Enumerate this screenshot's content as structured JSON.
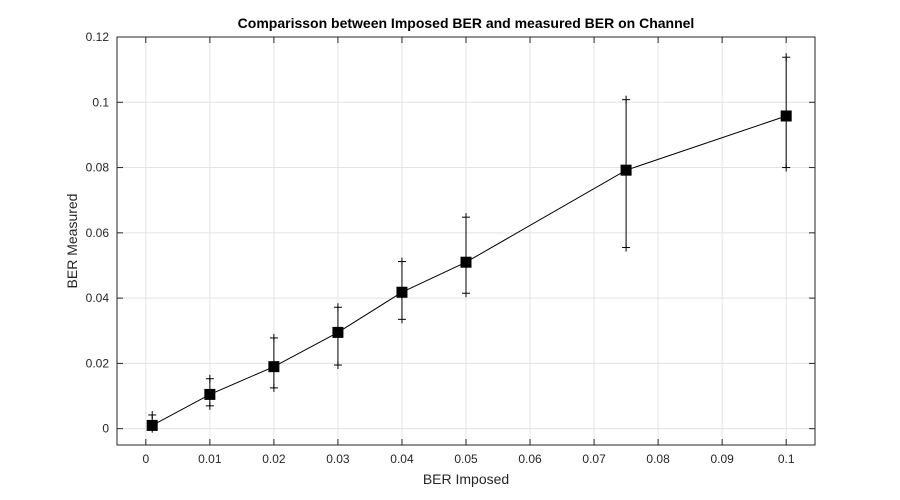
{
  "chart_data": {
    "type": "scatter",
    "title": "Comparisson between Imposed BER and measured BER on Channel",
    "xlabel": "BER Imposed",
    "ylabel": "BER Measured",
    "xlim": [
      -0.0045,
      0.1045
    ],
    "ylim": [
      -0.005,
      0.12
    ],
    "xticks": [
      0,
      0.01,
      0.02,
      0.03,
      0.04,
      0.05,
      0.06,
      0.07,
      0.08,
      0.09,
      0.1
    ],
    "xtick_labels": [
      "0",
      "0.01",
      "0.02",
      "0.03",
      "0.04",
      "0.05",
      "0.06",
      "0.07",
      "0.08",
      "0.09",
      "0.1"
    ],
    "yticks": [
      0,
      0.02,
      0.04,
      0.06,
      0.08,
      0.1,
      0.12
    ],
    "ytick_labels": [
      "0",
      "0.02",
      "0.04",
      "0.06",
      "0.08",
      "0.1",
      "0.12"
    ],
    "grid": true,
    "series": [
      {
        "x": [
          0.001,
          0.01,
          0.02,
          0.03,
          0.04,
          0.05,
          0.075,
          0.1
        ],
        "y": [
          0.001,
          0.0105,
          0.019,
          0.0295,
          0.0418,
          0.051,
          0.0792,
          0.0958
        ],
        "error_low": [
          0.0,
          0.007,
          0.0125,
          0.0195,
          0.0335,
          0.0415,
          0.0555,
          0.08
        ],
        "error_high": [
          0.0042,
          0.0153,
          0.0278,
          0.0372,
          0.0512,
          0.0648,
          0.1008,
          0.1138
        ],
        "marker": "square",
        "color": "#000000"
      }
    ]
  }
}
